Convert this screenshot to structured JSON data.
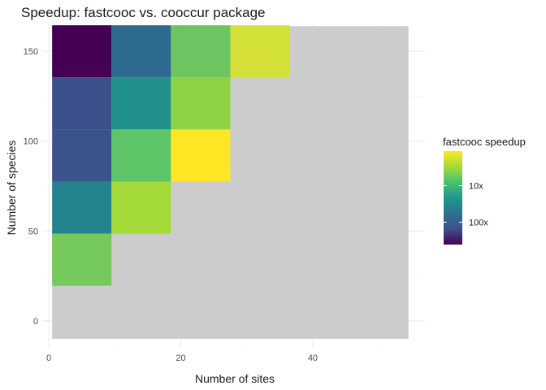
{
  "chart_data": {
    "type": "heatmap",
    "title": "Speedup: fastcooc vs. cooccur package",
    "xlabel": "Number of sites",
    "ylabel": "Number of species",
    "x_ticks": [
      0,
      20,
      40
    ],
    "y_ticks": [
      0,
      50,
      100,
      150
    ],
    "xlim": [
      -1,
      57
    ],
    "ylim": [
      -15,
      165
    ],
    "grid": true,
    "background_cell_color": "#cccccc",
    "background_extent": {
      "x": [
        0.5,
        54.5
      ],
      "y": [
        -10,
        164
      ]
    },
    "cell_width": 9,
    "cell_height": 29,
    "legend": {
      "title": "fastcooc speedup",
      "position": "right",
      "labels": [
        "10x",
        "100x"
      ],
      "label_positions": [
        0.37,
        0.76
      ],
      "colors": [
        "#fde725",
        "#a5db36",
        "#4ac16d",
        "#1f988b",
        "#2c728e",
        "#3b528b",
        "#440154"
      ]
    },
    "cells": [
      {
        "x": 5,
        "y": 150,
        "color": "#440154"
      },
      {
        "x": 14,
        "y": 150,
        "color": "#2e6a8e"
      },
      {
        "x": 23,
        "y": 150,
        "color": "#6cc560"
      },
      {
        "x": 32,
        "y": 150,
        "color": "#d2e038"
      },
      {
        "x": 5,
        "y": 121,
        "color": "#3b4f8a"
      },
      {
        "x": 14,
        "y": 121,
        "color": "#21918c"
      },
      {
        "x": 23,
        "y": 121,
        "color": "#8ed246"
      },
      {
        "x": 5,
        "y": 92,
        "color": "#3b528b"
      },
      {
        "x": 14,
        "y": 92,
        "color": "#5ec569"
      },
      {
        "x": 23,
        "y": 92,
        "color": "#fde725"
      },
      {
        "x": 5,
        "y": 63,
        "color": "#23838e"
      },
      {
        "x": 14,
        "y": 63,
        "color": "#a3da37"
      },
      {
        "x": 5,
        "y": 34,
        "color": "#76c95b"
      }
    ]
  }
}
